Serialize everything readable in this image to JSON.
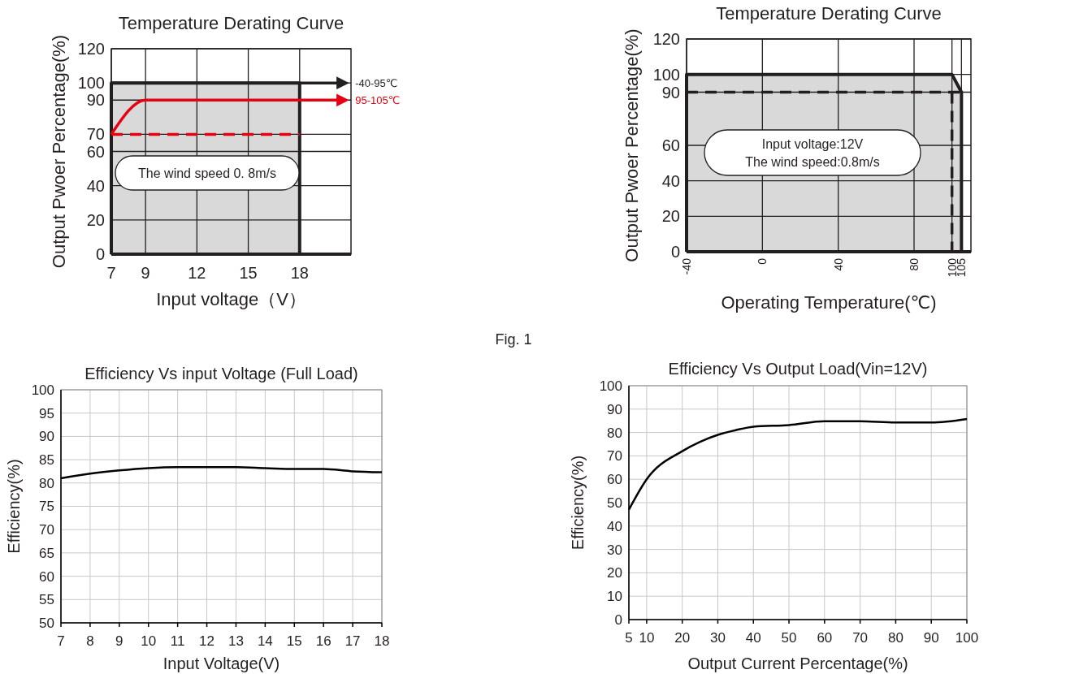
{
  "chart_data": [
    {
      "type": "line",
      "title": "Temperature Derating Curve",
      "xlabel": "Input  voltage（V）",
      "ylabel": "Output Pwoer Percentage(%)",
      "xlim": [
        7,
        21
      ],
      "xticks": [
        7,
        9,
        12,
        15,
        18
      ],
      "ylim": [
        0,
        120
      ],
      "yticks": [
        0,
        20,
        40,
        60,
        70,
        90,
        100,
        120
      ],
      "grid": true,
      "annotations": [
        "The wind speed 0. 8m/s"
      ],
      "series": [
        {
          "type": "area",
          "color": "#d9d9d9",
          "x": [
            7,
            18,
            18
          ],
          "values": [
            100,
            100,
            0
          ]
        },
        {
          "name": "-40-95℃",
          "color": "#231f20",
          "x": [
            7,
            20.3
          ],
          "values": [
            100,
            100
          ]
        },
        {
          "name": "95-105℃",
          "color": "#e60012",
          "x": [
            7,
            9,
            20.3
          ],
          "values": [
            70,
            90,
            90
          ]
        },
        {
          "color": "#e60012",
          "line_style": "dashed",
          "x": [
            7,
            18
          ],
          "values": [
            70,
            70
          ]
        }
      ]
    },
    {
      "type": "line",
      "title": "Temperature Derating Curve",
      "xlabel": "Operating  Temperature(℃)",
      "ylabel": "Output Pwoer Percentage(%)",
      "xlim": [
        -40,
        110
      ],
      "xticks": [
        -40,
        0,
        40,
        80,
        100,
        105
      ],
      "ylim": [
        0,
        120
      ],
      "yticks": [
        0,
        20,
        40,
        60,
        90,
        100,
        120
      ],
      "grid": true,
      "annotations": [
        "Input voltage:12V",
        "The  wind  speed:0.8m/s",
        "Fig. 1"
      ],
      "series": [
        {
          "type": "area",
          "color": "#d9d9d9",
          "x": [
            -40,
            100,
            105,
            105
          ],
          "values": [
            100,
            100,
            90,
            0
          ]
        },
        {
          "color": "#231f20",
          "line_style": "dashed",
          "x": [
            -40,
            105
          ],
          "values": [
            90,
            90
          ]
        },
        {
          "color": "#231f20",
          "line_style": "dashed",
          "x": [
            100,
            100
          ],
          "values": [
            90,
            0
          ]
        }
      ]
    },
    {
      "type": "line",
      "title": "Efficiency Vs input Voltage (Full Load)",
      "xlabel": "Input Voltage(V)",
      "ylabel": "Efficiency(%)",
      "xlim": [
        7,
        18
      ],
      "xticks": [
        7,
        8,
        9,
        10,
        11,
        12,
        13,
        14,
        15,
        16,
        17,
        18
      ],
      "ylim": [
        50,
        100
      ],
      "yticks": [
        50,
        55,
        60,
        65,
        70,
        75,
        80,
        85,
        90,
        95,
        100
      ],
      "grid": true,
      "series": [
        {
          "color": "#000000",
          "x": [
            7,
            8,
            9,
            10,
            11,
            12,
            13,
            14,
            15,
            16,
            17,
            18
          ],
          "values": [
            81,
            82,
            82.7,
            83.2,
            83.4,
            83.4,
            83.4,
            83.2,
            83,
            83,
            82.5,
            82.3
          ]
        }
      ]
    },
    {
      "type": "line",
      "title": "Efficiency Vs Output Load(Vin=12V)",
      "xlabel": "Output Current Percentage(%)",
      "ylabel": "Efficiency(%)",
      "xlim": [
        5,
        100
      ],
      "xticks": [
        5,
        10,
        20,
        30,
        40,
        50,
        60,
        70,
        80,
        90,
        100
      ],
      "ylim": [
        0,
        100
      ],
      "yticks": [
        0,
        10,
        20,
        30,
        40,
        50,
        60,
        70,
        80,
        90,
        100
      ],
      "grid": true,
      "series": [
        {
          "color": "#000000",
          "x": [
            5,
            10,
            20,
            25,
            30,
            35,
            40,
            50,
            60,
            70,
            80,
            90,
            100
          ],
          "values": [
            47,
            60,
            72,
            76,
            79,
            81,
            82.5,
            83.2,
            84.8,
            84.8,
            84.3,
            84.3,
            85.8
          ]
        }
      ]
    }
  ]
}
